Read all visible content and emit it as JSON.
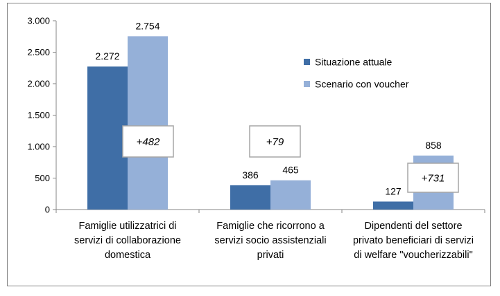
{
  "chart_data": {
    "type": "bar",
    "categories": [
      [
        "Famiglie utilizzatrici di",
        "servizi di collaborazione",
        "domestica"
      ],
      [
        "Famiglie che ricorrono a",
        "servizi socio assistenziali",
        "privati"
      ],
      [
        "Dipendenti del settore",
        "privato beneficiari di servizi",
        "di welfare \"voucherizzabili\""
      ]
    ],
    "series": [
      {
        "name": "Situazione attuale",
        "values": [
          2272,
          386,
          127
        ],
        "labels": [
          "2.272",
          "386",
          "127"
        ],
        "color": "#3f6ea6"
      },
      {
        "name": "Scenario con voucher",
        "values": [
          2754,
          465,
          858
        ],
        "labels": [
          "2.754",
          "465",
          "858"
        ],
        "color": "#95b0d8"
      }
    ],
    "ylim": [
      0,
      3000
    ],
    "yticks": [
      0,
      500,
      1000,
      1500,
      2000,
      2500,
      3000
    ],
    "ytick_labels": [
      "0",
      "500",
      "1.000",
      "1.500",
      "2.000",
      "2.500",
      "3.000"
    ],
    "annotations": [
      "+482",
      "+79",
      "+731"
    ],
    "legend_position": "right",
    "grid": false,
    "title": "",
    "xlabel": "",
    "ylabel": ""
  }
}
